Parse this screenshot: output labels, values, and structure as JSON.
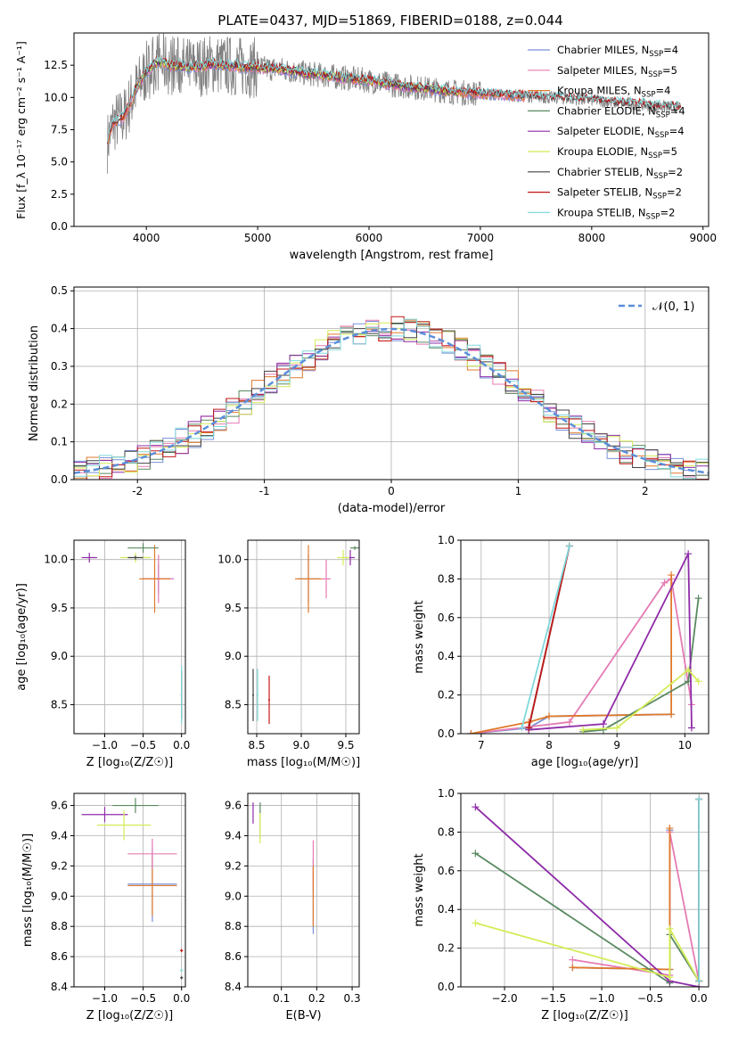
{
  "title": "PLATE=0437, MJD=51869, FIBERID=0188, z=0.044",
  "colors": {
    "Chabrier MILES": "#7a90d8",
    "Salpeter MILES": "#e57bb4",
    "Kroupa MILES": "#e07a2c",
    "Chabrier ELODIE": "#5a8a60",
    "Salpeter ELODIE": "#8e2ca8",
    "Kroupa ELODIE": "#d4ec58",
    "Chabrier STELIB": "#444444",
    "Salpeter STELIB": "#c01818",
    "Kroupa STELIB": "#80d8dc",
    "data": "#808080",
    "normal": "#5b8fd9"
  },
  "chart_data": [
    {
      "type": "line",
      "title": "PLATE=0437, MJD=51869, FIBERID=0188, z=0.044",
      "xlabel": "wavelength [Angstrom, rest frame]",
      "ylabel": "Flux [f_λ 10⁻¹⁷ erg cm⁻² s⁻¹ A⁻¹]",
      "xlim": [
        3350,
        9050
      ],
      "ylim": [
        0,
        15
      ],
      "xticks": [
        4000,
        5000,
        6000,
        7000,
        8000,
        9000
      ],
      "yticks": [
        0.0,
        2.5,
        5.0,
        7.5,
        10.0,
        12.5
      ],
      "legend_position": "top-right",
      "legend": [
        {
          "name": "Chabrier MILES",
          "nssp": "4"
        },
        {
          "name": "Salpeter MILES",
          "nssp": "5"
        },
        {
          "name": "Kroupa MILES",
          "nssp": "4"
        },
        {
          "name": "Chabrier ELODIE",
          "nssp": "4"
        },
        {
          "name": "Salpeter ELODIE",
          "nssp": "4"
        },
        {
          "name": "Kroupa ELODIE",
          "nssp": "5"
        },
        {
          "name": "Chabrier STELIB",
          "nssp": "2"
        },
        {
          "name": "Salpeter STELIB",
          "nssp": "2"
        },
        {
          "name": "Kroupa STELIB",
          "nssp": "2"
        }
      ],
      "data_spectrum_profile": {
        "x": [
          3650,
          3700,
          3800,
          3900,
          4000,
          4100,
          4200,
          4400,
          4600,
          4800,
          5000,
          5200,
          5400,
          5600,
          5800,
          6000,
          6200,
          6400,
          6600,
          6800,
          7000,
          7200,
          7400,
          7600,
          7800,
          8000,
          8200,
          8400,
          8600,
          8800
        ],
        "y": [
          6.5,
          8.0,
          8.5,
          10.5,
          12.0,
          12.8,
          12.5,
          12.3,
          12.6,
          12.4,
          12.3,
          12.2,
          11.9,
          11.7,
          11.5,
          11.3,
          11.0,
          10.8,
          10.6,
          10.4,
          10.3,
          10.2,
          10.1,
          10.0,
          9.9,
          9.8,
          9.6,
          9.5,
          9.3,
          9.2
        ]
      },
      "model_wavelength_ranges": {
        "MILES": [
          3650,
          7400
        ],
        "ELODIE": [
          3900,
          6800
        ],
        "STELIB": [
          3650,
          8800
        ]
      }
    },
    {
      "type": "bar",
      "xlabel": "(data-model)/error",
      "ylabel": "Normed distribution",
      "xlim": [
        -2.5,
        2.5
      ],
      "ylim": [
        0,
        0.51
      ],
      "xticks": [
        -2,
        -1,
        0,
        1,
        2
      ],
      "yticks": [
        0.0,
        0.1,
        0.2,
        0.3,
        0.4,
        0.5
      ],
      "legend": [
        "𝒩(0, 1)"
      ],
      "legend_position": "top-right",
      "bin_width": 0.1,
      "curve": "normal pdf, mean 0, sigma 1"
    },
    {
      "type": "scatter",
      "name": "age vs Z",
      "xlabel": "Z [log₁₀(Z/Z☉)]",
      "ylabel": "age  [log₁₀(age/yr)]",
      "xlim": [
        -1.4,
        0.05
      ],
      "ylim": [
        8.2,
        10.2
      ],
      "xticks": [
        -1.0,
        -0.5,
        0.0
      ],
      "xticklabels": [
        "−1.0",
        "−0.5",
        "0.0"
      ],
      "yticks": [
        8.5,
        9.0,
        9.5,
        10.0
      ],
      "points": [
        {
          "model": "Chabrier MILES",
          "x": -0.3,
          "y": 9.8,
          "xerr": 0.2,
          "yerr": 0.15
        },
        {
          "model": "Salpeter MILES",
          "x": -0.3,
          "y": 9.8,
          "xerr": 0.2,
          "yerr": 0.25
        },
        {
          "model": "Kroupa MILES",
          "x": -0.35,
          "y": 9.8,
          "xerr": 0.2,
          "yerr": 0.35
        },
        {
          "model": "Chabrier ELODIE",
          "x": -0.5,
          "y": 10.12,
          "xerr": 0.2,
          "yerr": 0.05
        },
        {
          "model": "Salpeter ELODIE",
          "x": -1.2,
          "y": 10.02,
          "xerr": 0.1,
          "yerr": 0.05
        },
        {
          "model": "Kroupa ELODIE",
          "x": -0.6,
          "y": 10.02,
          "xerr": 0.2,
          "yerr": 0.05
        },
        {
          "model": "Chabrier STELIB",
          "x": -0.6,
          "y": 10.02,
          "xerr": 0.1,
          "yerr": 0.02
        },
        {
          "model": "Chabrier STELIB",
          "x": 0.0,
          "y": 8.6,
          "xerr": 0.01,
          "yerr": 0.25
        },
        {
          "model": "Kroupa STELIB",
          "x": 0.0,
          "y": 8.6,
          "xerr": 0.01,
          "yerr": 0.3
        }
      ]
    },
    {
      "type": "scatter",
      "name": "age vs mass",
      "xlabel": "mass [log₁₀(M/M☉)]",
      "xlim": [
        8.4,
        9.65
      ],
      "ylim": [
        8.2,
        10.2
      ],
      "xticks": [
        8.5,
        9.0,
        9.5
      ],
      "yticks": [
        8.5,
        9.0,
        9.5,
        10.0
      ],
      "points": [
        {
          "model": "Chabrier MILES",
          "x": 9.08,
          "y": 9.8,
          "xerr": 0.12,
          "yerr": 0.25
        },
        {
          "model": "Kroupa MILES",
          "x": 9.08,
          "y": 9.8,
          "xerr": 0.15,
          "yerr": 0.35
        },
        {
          "model": "Salpeter MILES",
          "x": 9.28,
          "y": 9.8,
          "xerr": 0.05,
          "yerr": 0.2
        },
        {
          "model": "Chabrier ELODIE",
          "x": 9.6,
          "y": 10.12,
          "xerr": 0.05,
          "yerr": 0.02
        },
        {
          "model": "Salpeter ELODIE",
          "x": 9.55,
          "y": 10.02,
          "xerr": 0.05,
          "yerr": 0.08
        },
        {
          "model": "Kroupa ELODIE",
          "x": 9.47,
          "y": 10.02,
          "xerr": 0.07,
          "yerr": 0.08
        },
        {
          "model": "Chabrier STELIB",
          "x": 8.46,
          "y": 8.6,
          "xerr": 0.01,
          "yerr": 0.27
        },
        {
          "model": "Kroupa STELIB",
          "x": 8.51,
          "y": 8.6,
          "xerr": 0.01,
          "yerr": 0.27
        },
        {
          "model": "Salpeter STELIB",
          "x": 8.64,
          "y": 8.55,
          "xerr": 0.01,
          "yerr": 0.25
        }
      ]
    },
    {
      "type": "line",
      "name": "mass weight vs age",
      "xlabel": "age  [log₁₀(age/yr)]",
      "ylabel": "mass weight",
      "xlim": [
        6.7,
        10.35
      ],
      "ylim": [
        0,
        1.0
      ],
      "xticks": [
        7,
        8,
        9,
        10
      ],
      "yticks": [
        0.0,
        0.2,
        0.4,
        0.6,
        0.8,
        1.0
      ],
      "series": [
        {
          "model": "Chabrier MILES",
          "x": [
            6.85,
            7.7,
            8.0,
            9.8
          ],
          "y": [
            0.0,
            0.03,
            0.09,
            0.1
          ]
        },
        {
          "model": "Salpeter MILES",
          "x": [
            6.85,
            8.3,
            9.7,
            9.8,
            10.1
          ],
          "y": [
            0.0,
            0.06,
            0.78,
            0.8,
            0.15
          ]
        },
        {
          "model": "Kroupa MILES",
          "x": [
            6.85,
            7.7,
            8.0,
            9.8,
            9.8
          ],
          "y": [
            0.0,
            0.06,
            0.09,
            0.1,
            0.82
          ]
        },
        {
          "model": "Chabrier ELODIE",
          "x": [
            8.5,
            8.8,
            10.05,
            10.2
          ],
          "y": [
            0.01,
            0.02,
            0.27,
            0.7
          ]
        },
        {
          "model": "Salpeter ELODIE",
          "x": [
            7.7,
            8.8,
            10.05,
            10.1
          ],
          "y": [
            0.02,
            0.05,
            0.93,
            0.03
          ]
        },
        {
          "model": "Kroupa ELODIE",
          "x": [
            8.5,
            9.0,
            10.05,
            10.2
          ],
          "y": [
            0.02,
            0.03,
            0.33,
            0.27
          ]
        },
        {
          "model": "Chabrier STELIB",
          "x": [
            7.7,
            8.3
          ],
          "y": [
            0.03,
            0.97
          ]
        },
        {
          "model": "Salpeter STELIB",
          "x": [
            7.7,
            8.3
          ],
          "y": [
            0.03,
            0.97
          ]
        },
        {
          "model": "Kroupa STELIB",
          "x": [
            7.6,
            8.3
          ],
          "y": [
            0.03,
            0.97
          ]
        }
      ]
    },
    {
      "type": "scatter",
      "name": "mass vs Z",
      "xlabel": "Z [log₁₀(Z/Z☉)]",
      "ylabel": "mass [log₁₀(M/M☉)]",
      "xlim": [
        -1.4,
        0.05
      ],
      "ylim": [
        8.4,
        9.68
      ],
      "xticks": [
        -1.0,
        -0.5,
        0.0
      ],
      "xticklabels": [
        "−1.0",
        "−0.5",
        "0.0"
      ],
      "yticks": [
        8.4,
        8.6,
        8.8,
        9.0,
        9.2,
        9.4,
        9.6
      ],
      "points": [
        {
          "model": "Chabrier MILES",
          "x": -0.38,
          "y": 9.08,
          "xerr": 0.32,
          "yerr": 0.25
        },
        {
          "model": "Kroupa MILES",
          "x": -0.38,
          "y": 9.07,
          "xerr": 0.32,
          "yerr": 0.2
        },
        {
          "model": "Salpeter MILES",
          "x": -0.38,
          "y": 9.28,
          "xerr": 0.32,
          "yerr": 0.1
        },
        {
          "model": "Chabrier ELODIE",
          "x": -0.6,
          "y": 9.6,
          "xerr": 0.3,
          "yerr": 0.05
        },
        {
          "model": "Salpeter ELODIE",
          "x": -1.0,
          "y": 9.54,
          "xerr": 0.3,
          "yerr": 0.05
        },
        {
          "model": "Kroupa ELODIE",
          "x": -0.75,
          "y": 9.47,
          "xerr": 0.35,
          "yerr": 0.1
        },
        {
          "model": "Salpeter STELIB",
          "x": 0.0,
          "y": 8.64,
          "xerr": 0.02,
          "yerr": 0.01
        },
        {
          "model": "Kroupa STELIB",
          "x": 0.0,
          "y": 8.51,
          "xerr": 0.02,
          "yerr": 0.01
        },
        {
          "model": "Chabrier STELIB",
          "x": 0.0,
          "y": 8.46,
          "xerr": 0.02,
          "yerr": 0.01
        }
      ]
    },
    {
      "type": "scatter",
      "name": "mass vs E(B-V)",
      "xlabel": "E(B-V)",
      "xlim": [
        0.005,
        0.32
      ],
      "ylim": [
        8.4,
        9.68
      ],
      "xticks": [
        0.1,
        0.2,
        0.3
      ],
      "yticks": [
        8.4,
        8.6,
        8.8,
        9.0,
        9.2,
        9.4,
        9.6
      ],
      "points": [
        {
          "model": "Chabrier MILES",
          "x": 0.19,
          "y": 9.0,
          "yerr": 0.25
        },
        {
          "model": "Salpeter MILES",
          "x": 0.19,
          "y": 9.2,
          "yerr": 0.17
        },
        {
          "model": "Kroupa MILES",
          "x": 0.19,
          "y": 9.0,
          "yerr": 0.2
        },
        {
          "model": "Chabrier ELODIE",
          "x": 0.04,
          "y": 9.5,
          "yerr": 0.12
        },
        {
          "model": "Salpeter ELODIE",
          "x": 0.02,
          "y": 9.55,
          "yerr": 0.07
        },
        {
          "model": "Kroupa ELODIE",
          "x": 0.04,
          "y": 9.45,
          "yerr": 0.1
        }
      ]
    },
    {
      "type": "line",
      "name": "mass weight vs Z",
      "xlabel": "Z [log₁₀(Z/Z☉)]",
      "ylabel": "mass weight",
      "xlim": [
        -2.45,
        0.1
      ],
      "ylim": [
        0,
        1.0
      ],
      "xticks": [
        -2.0,
        -1.5,
        -1.0,
        -0.5,
        0.0
      ],
      "xticklabels": [
        "−2.0",
        "−1.5",
        "−1.0",
        "−0.5",
        "0.0"
      ],
      "yticks": [
        0.0,
        0.2,
        0.4,
        0.6,
        0.8,
        1.0
      ],
      "series": [
        {
          "model": "Chabrier MILES",
          "x": [
            -1.3,
            -0.3,
            -0.3
          ],
          "y": [
            0.1,
            0.09,
            0.81
          ]
        },
        {
          "model": "Salpeter MILES",
          "x": [
            -1.3,
            -0.3,
            -0.3,
            0.0
          ],
          "y": [
            0.14,
            0.06,
            0.8,
            0.03
          ]
        },
        {
          "model": "Kroupa MILES",
          "x": [
            -1.3,
            -0.3,
            -0.3
          ],
          "y": [
            0.1,
            0.09,
            0.82
          ]
        },
        {
          "model": "Chabrier ELODIE",
          "x": [
            -2.3,
            -0.3,
            -0.3,
            0.0
          ],
          "y": [
            0.69,
            0.02,
            0.27,
            0.03
          ]
        },
        {
          "model": "Salpeter ELODIE",
          "x": [
            -2.3,
            -0.3,
            0.0
          ],
          "y": [
            0.93,
            0.03,
            0.0
          ]
        },
        {
          "model": "Kroupa ELODIE",
          "x": [
            -2.3,
            -0.3,
            -0.3,
            0.0
          ],
          "y": [
            0.33,
            0.05,
            0.3,
            0.03
          ]
        },
        {
          "model": "Chabrier STELIB",
          "x": [
            0.0,
            0.0
          ],
          "y": [
            0.03,
            0.97
          ]
        },
        {
          "model": "Salpeter STELIB",
          "x": [
            0.0,
            0.0
          ],
          "y": [
            0.03,
            0.97
          ]
        },
        {
          "model": "Kroupa STELIB",
          "x": [
            0.0,
            0.0
          ],
          "y": [
            0.03,
            0.97
          ]
        }
      ]
    }
  ]
}
